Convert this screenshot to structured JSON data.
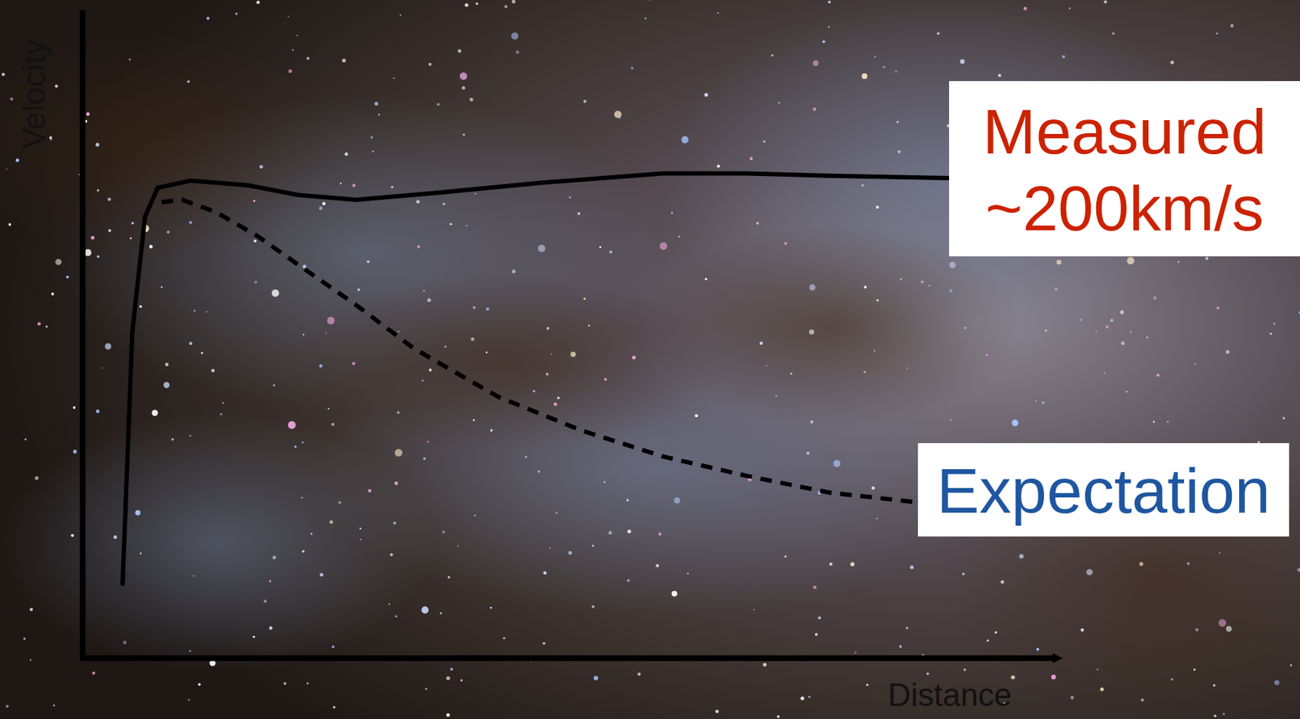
{
  "chart_data": {
    "type": "line",
    "x_label": "Distance",
    "y_label": "Velocity",
    "xlim": [
      0,
      100
    ],
    "ylim": [
      0,
      270
    ],
    "tick_labels": false,
    "grid": false,
    "annotations": [
      "~200km/s"
    ],
    "series": [
      {
        "name": "Measured",
        "color": "#000000",
        "line_style": "solid",
        "x": [
          4.1,
          5.1,
          6.4,
          7.7,
          11.1,
          17.0,
          22.1,
          28.1,
          36.6,
          46.8,
          59.6,
          68.1,
          76.6,
          88.9
        ],
        "values": [
          31,
          136,
          184,
          196,
          199,
          197,
          193,
          191,
          194,
          198,
          202,
          202,
          201,
          200
        ]
      },
      {
        "name": "Expectation",
        "color": "#000000",
        "line_style": "dashed",
        "x": [
          8.1,
          10.2,
          13.6,
          17.9,
          22.1,
          28.1,
          34.0,
          42.6,
          51.1,
          59.6,
          68.1,
          76.6,
          85.5
        ],
        "values": [
          190,
          191,
          186,
          176,
          164,
          147,
          129,
          109,
          95,
          84,
          76,
          69,
          65
        ]
      }
    ]
  }
}
